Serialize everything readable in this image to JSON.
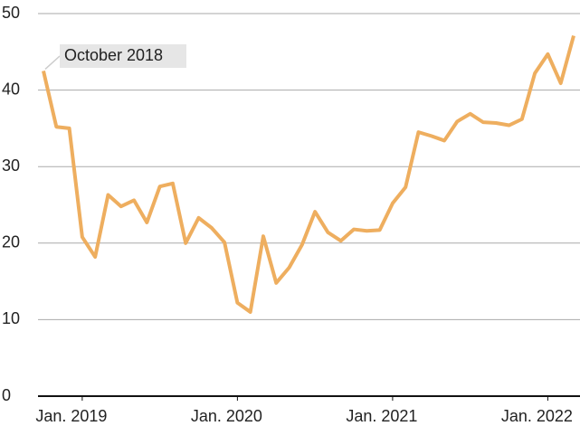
{
  "chart_data": {
    "type": "line",
    "annotation": "October 2018",
    "x": [
      "2018-10",
      "2018-11",
      "2018-12",
      "2019-01",
      "2019-02",
      "2019-03",
      "2019-04",
      "2019-05",
      "2019-06",
      "2019-07",
      "2019-08",
      "2019-09",
      "2019-10",
      "2019-11",
      "2019-12",
      "2020-01",
      "2020-02",
      "2020-03",
      "2020-04",
      "2020-05",
      "2020-06",
      "2020-07",
      "2020-08",
      "2020-09",
      "2020-10",
      "2020-11",
      "2020-12",
      "2021-01",
      "2021-02",
      "2021-03",
      "2021-04",
      "2021-05",
      "2021-06",
      "2021-07",
      "2021-08",
      "2021-09",
      "2021-10",
      "2021-11",
      "2021-12",
      "2022-01",
      "2022-02",
      "2022-03"
    ],
    "series": [
      {
        "color": "#eeae5f",
        "values": [
          42.5,
          35.2,
          35.0,
          20.8,
          18.2,
          26.3,
          24.8,
          25.6,
          22.7,
          27.4,
          27.8,
          20.0,
          23.3,
          22.0,
          20.1,
          12.2,
          11.0,
          20.9,
          14.8,
          16.8,
          19.8,
          24.1,
          21.4,
          20.3,
          21.8,
          21.6,
          21.7,
          25.2,
          27.3,
          34.5,
          34.0,
          33.4,
          35.9,
          36.9,
          35.8,
          35.7,
          35.4,
          36.2,
          42.2,
          44.7,
          40.9,
          47.1
        ]
      }
    ],
    "xlim": [
      "2018-10",
      "2022-03"
    ],
    "xticks": [
      {
        "value": "2019-01",
        "label": "Jan. 2019"
      },
      {
        "value": "2020-01",
        "label": "Jan. 2020"
      },
      {
        "value": "2021-01",
        "label": "Jan. 2021"
      },
      {
        "value": "2022-01",
        "label": "Jan. 2022"
      }
    ],
    "ylim": [
      0,
      50
    ],
    "yticks": [
      0,
      10,
      20,
      30,
      40,
      50
    ],
    "grid": true
  }
}
